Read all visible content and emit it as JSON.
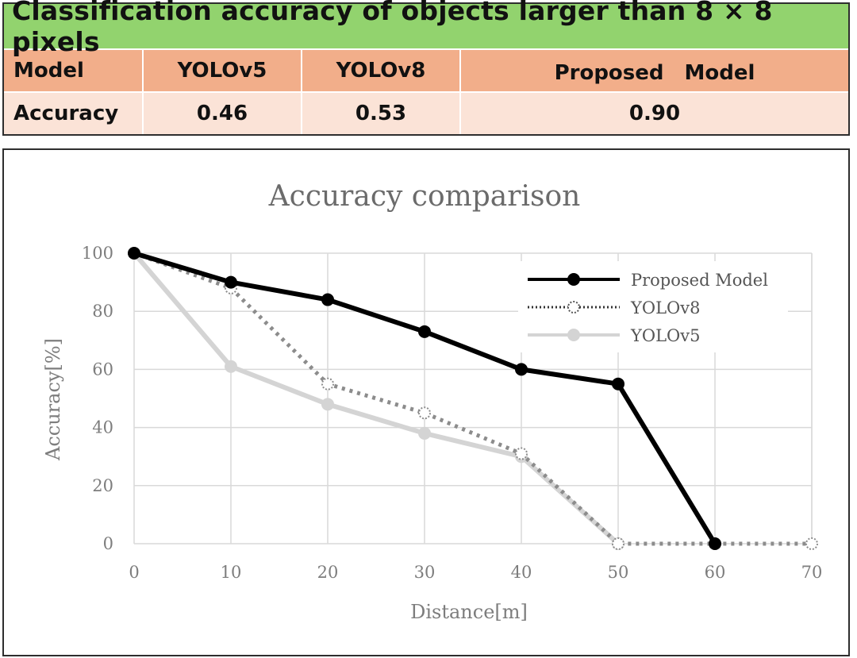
{
  "table": {
    "title": "Classification accuracy of objects larger than 8 × 8 pixels",
    "header": [
      "Model",
      "YOLOv5",
      "YOLOv8",
      "Proposed　Model"
    ],
    "row": [
      "Accuracy",
      "0.46",
      "0.53",
      "0.90"
    ],
    "colors": {
      "title_bg": "#92d36e",
      "header_bg": "#f2ae8a",
      "row_bg": "#fbe3d7"
    }
  },
  "chart_data": {
    "type": "line",
    "title": "Accuracy comparison",
    "xlabel": "Distance[m]",
    "ylabel": "Accuracy[%]",
    "x": [
      0,
      10,
      20,
      30,
      40,
      50,
      60,
      70
    ],
    "xlim": [
      0,
      70
    ],
    "ylim": [
      0,
      100
    ],
    "xticks": [
      0,
      10,
      20,
      30,
      40,
      50,
      60,
      70
    ],
    "yticks": [
      0,
      20,
      40,
      60,
      80,
      100
    ],
    "grid": true,
    "legend_position": "top-right",
    "series": [
      {
        "name": "Proposed Model",
        "x": [
          0,
          10,
          20,
          30,
          40,
          50,
          60
        ],
        "values": [
          100,
          90,
          84,
          73,
          60,
          55,
          0
        ],
        "color": "#000000",
        "marker": "filled-circle",
        "line": "solid"
      },
      {
        "name": "YOLOv8",
        "x": [
          0,
          10,
          20,
          30,
          40,
          50,
          60,
          70
        ],
        "values": [
          100,
          88,
          55,
          45,
          31,
          0,
          0,
          0
        ],
        "color": "#7f7f7f",
        "marker": "open-circle",
        "line": "dotted"
      },
      {
        "name": "YOLOv5",
        "x": [
          0,
          10,
          20,
          30,
          40,
          50
        ],
        "values": [
          100,
          61,
          48,
          38,
          30,
          0
        ],
        "color": "#d4d4d4",
        "marker": "filled-circle",
        "line": "solid"
      }
    ]
  }
}
